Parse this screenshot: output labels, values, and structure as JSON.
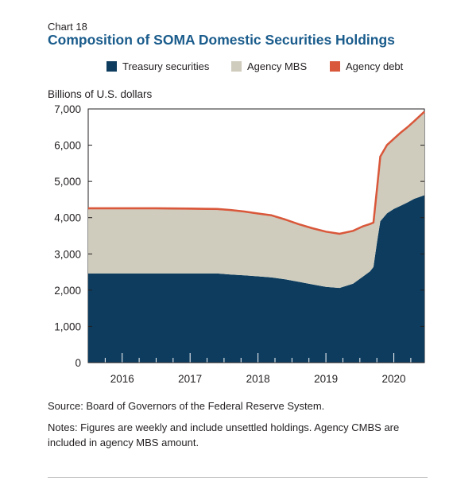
{
  "chart_number": "Chart 18",
  "title": "Composition of SOMA Domestic Securities Holdings",
  "source": "Source: Board of Governors of the Federal Reserve System.",
  "notes": "Notes: Figures are weekly and include unsettled holdings. Agency CMBS are included in agency MBS amount.",
  "colors": {
    "treasury": "#0d3c5e",
    "mbs": "#cfccbd",
    "agency_debt": "#d9573a",
    "title": "#1a5c8c"
  },
  "chart_data": {
    "type": "area",
    "stacked": true,
    "ylabel": "Billions of U.S. dollars",
    "ylim": [
      0,
      7000
    ],
    "yticks": [
      0,
      1000,
      2000,
      3000,
      4000,
      5000,
      6000,
      7000
    ],
    "ytick_labels": [
      "0",
      "1,000",
      "2,000",
      "3,000",
      "4,000",
      "5,000",
      "6,000",
      "7,000"
    ],
    "xlim": [
      2015.5,
      2020.45
    ],
    "xtick_labels": [
      "2016",
      "2017",
      "2018",
      "2019",
      "2020"
    ],
    "xtick_positions": [
      2016,
      2017,
      2018,
      2019,
      2020
    ],
    "legend_position": "top",
    "x": [
      2015.5,
      2016.0,
      2016.5,
      2017.0,
      2017.4,
      2017.6,
      2017.8,
      2018.0,
      2018.2,
      2018.4,
      2018.6,
      2018.8,
      2019.0,
      2019.2,
      2019.4,
      2019.55,
      2019.65,
      2019.7,
      2019.75,
      2019.8,
      2019.9,
      2020.0,
      2020.1,
      2020.2,
      2020.3,
      2020.45
    ],
    "series": [
      {
        "name": "Treasury securities",
        "values": [
          2460,
          2460,
          2460,
          2460,
          2460,
          2430,
          2410,
          2380,
          2350,
          2300,
          2230,
          2160,
          2090,
          2060,
          2180,
          2380,
          2520,
          2640,
          3300,
          3900,
          4120,
          4240,
          4330,
          4420,
          4520,
          4620
        ]
      },
      {
        "name": "Agency MBS",
        "values": [
          1770,
          1770,
          1770,
          1760,
          1750,
          1760,
          1740,
          1720,
          1700,
          1640,
          1580,
          1540,
          1520,
          1490,
          1450,
          1380,
          1300,
          1220,
          1460,
          1780,
          1880,
          1930,
          2010,
          2070,
          2140,
          2300
        ]
      },
      {
        "name": "Agency debt",
        "values": [
          30,
          30,
          30,
          30,
          30,
          20,
          20,
          15,
          15,
          10,
          10,
          8,
          5,
          5,
          5,
          5,
          5,
          5,
          5,
          5,
          5,
          5,
          5,
          5,
          5,
          5
        ]
      }
    ]
  }
}
